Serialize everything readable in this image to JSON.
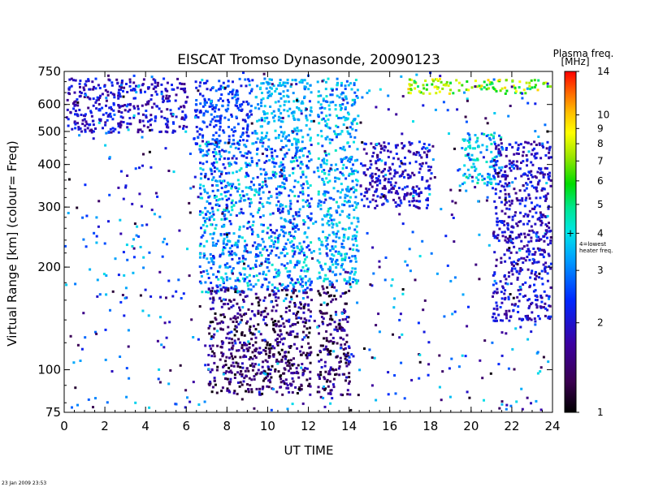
{
  "chart_data": {
    "type": "heatmap",
    "title": "EISCAT Tromso Dynasonde,  20090123",
    "xlabel": "UT TIME",
    "ylabel": "Virtual Range [km]    (colour= Freq)",
    "xlim": [
      0,
      24
    ],
    "ylim": [
      75,
      750
    ],
    "y_scale": "log",
    "x_ticks": [
      0,
      2,
      4,
      6,
      8,
      10,
      12,
      14,
      16,
      18,
      20,
      22,
      24
    ],
    "y_ticks": [
      75,
      100,
      200,
      300,
      400,
      500,
      600,
      750
    ],
    "colorbar": {
      "title": "Plasma freq.",
      "unit": "[MHz]",
      "scale": "log",
      "range": [
        1,
        14
      ],
      "ticks": [
        1,
        2,
        3,
        4,
        5,
        6,
        7,
        8,
        9,
        10,
        14
      ],
      "marker_value": 4,
      "marker_label_1": "4=lowest",
      "marker_label_2": "heater freq."
    },
    "regions": [
      {
        "x": [
          6.3,
          9.2
        ],
        "y": [
          460,
          720
        ],
        "freq": [
          2.0,
          3.0
        ]
      },
      {
        "x": [
          6.6,
          12.1
        ],
        "y": [
          170,
          470
        ],
        "freq": [
          2.0,
          4.5
        ]
      },
      {
        "x": [
          7.0,
          12.1
        ],
        "y": [
          85,
          175
        ],
        "freq": [
          1.0,
          2.0
        ]
      },
      {
        "x": [
          9.3,
          12.1
        ],
        "y": [
          470,
          720
        ],
        "freq": [
          3.0,
          4.0
        ]
      },
      {
        "x": [
          12.4,
          14.4
        ],
        "y": [
          180,
          720
        ],
        "freq": [
          2.5,
          4.5
        ]
      },
      {
        "x": [
          12.4,
          14.0
        ],
        "y": [
          85,
          180
        ],
        "freq": [
          1.0,
          2.0
        ]
      },
      {
        "x": [
          14.5,
          18.0
        ],
        "y": [
          300,
          470
        ],
        "freq": [
          1.5,
          2.5
        ]
      },
      {
        "x": [
          16.8,
          24.0
        ],
        "y": [
          650,
          720
        ],
        "freq": [
          5.0,
          10.0
        ]
      },
      {
        "x": [
          19.5,
          21.5
        ],
        "y": [
          350,
          500
        ],
        "freq": [
          2.5,
          5.0
        ]
      },
      {
        "x": [
          21.0,
          24.0
        ],
        "y": [
          140,
          470
        ],
        "freq": [
          1.5,
          2.5
        ]
      },
      {
        "x": [
          0.0,
          6.0
        ],
        "y": [
          500,
          720
        ],
        "freq": [
          1.5,
          2.5
        ]
      }
    ],
    "timestamp": "23 Jan 2009 23:53"
  }
}
